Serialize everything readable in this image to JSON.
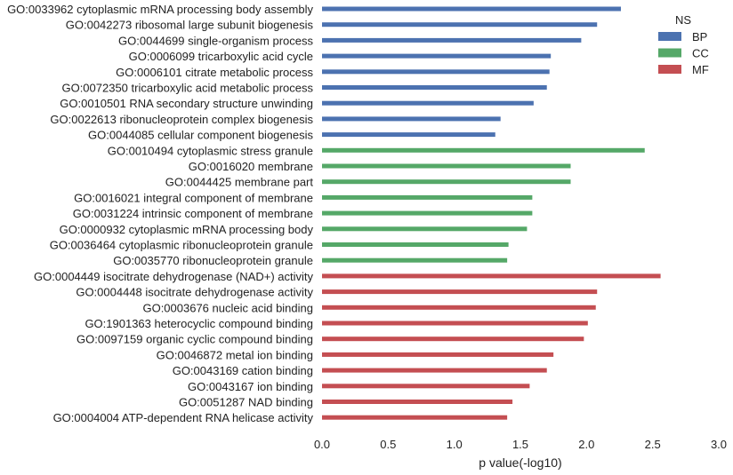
{
  "chart_data": {
    "type": "bar",
    "orientation": "horizontal",
    "xlabel": "p value(-log10)",
    "xlim": [
      0,
      3.0
    ],
    "xticks": [
      "0.0",
      "0.5",
      "1.0",
      "1.5",
      "2.0",
      "2.5",
      "3.0"
    ],
    "grid": false,
    "legend": {
      "title": "NS",
      "placement": "top-right",
      "entries": [
        {
          "name": "BP",
          "color": "#4c72b0"
        },
        {
          "name": "CC",
          "color": "#55a868"
        },
        {
          "name": "MF",
          "color": "#c44e52"
        }
      ]
    },
    "categories": [
      "GO:0033962 cytoplasmic mRNA processing body assembly",
      "GO:0042273 ribosomal large subunit biogenesis",
      "GO:0044699 single-organism process",
      "GO:0006099 tricarboxylic acid cycle",
      "GO:0006101 citrate metabolic process",
      "GO:0072350 tricarboxylic acid metabolic process",
      "GO:0010501 RNA secondary structure unwinding",
      "GO:0022613 ribonucleoprotein complex biogenesis",
      "GO:0044085 cellular component biogenesis",
      "GO:0010494 cytoplasmic stress granule",
      "GO:0016020 membrane",
      "GO:0044425 membrane part",
      "GO:0016021 integral component of membrane",
      "GO:0031224 intrinsic component of membrane",
      "GO:0000932 cytoplasmic mRNA processing body",
      "GO:0036464 cytoplasmic ribonucleoprotein granule",
      "GO:0035770 ribonucleoprotein granule",
      "GO:0004449 isocitrate dehydrogenase (NAD+) activity",
      "GO:0004448 isocitrate dehydrogenase activity",
      "GO:0003676 nucleic acid binding",
      "GO:1901363 heterocyclic compound binding",
      "GO:0097159 organic cyclic compound binding",
      "GO:0046872 metal ion binding",
      "GO:0043169 cation binding",
      "GO:0043167 ion binding",
      "GO:0051287 NAD binding",
      "GO:0004004 ATP-dependent RNA helicase activity"
    ],
    "values": [
      2.26,
      2.08,
      1.96,
      1.73,
      1.72,
      1.7,
      1.6,
      1.35,
      1.31,
      2.44,
      1.88,
      1.88,
      1.59,
      1.59,
      1.55,
      1.41,
      1.4,
      2.56,
      2.08,
      2.07,
      2.01,
      1.98,
      1.75,
      1.7,
      1.57,
      1.44,
      1.4
    ],
    "groups": [
      "BP",
      "BP",
      "BP",
      "BP",
      "BP",
      "BP",
      "BP",
      "BP",
      "BP",
      "CC",
      "CC",
      "CC",
      "CC",
      "CC",
      "CC",
      "CC",
      "CC",
      "MF",
      "MF",
      "MF",
      "MF",
      "MF",
      "MF",
      "MF",
      "MF",
      "MF",
      "MF"
    ]
  }
}
